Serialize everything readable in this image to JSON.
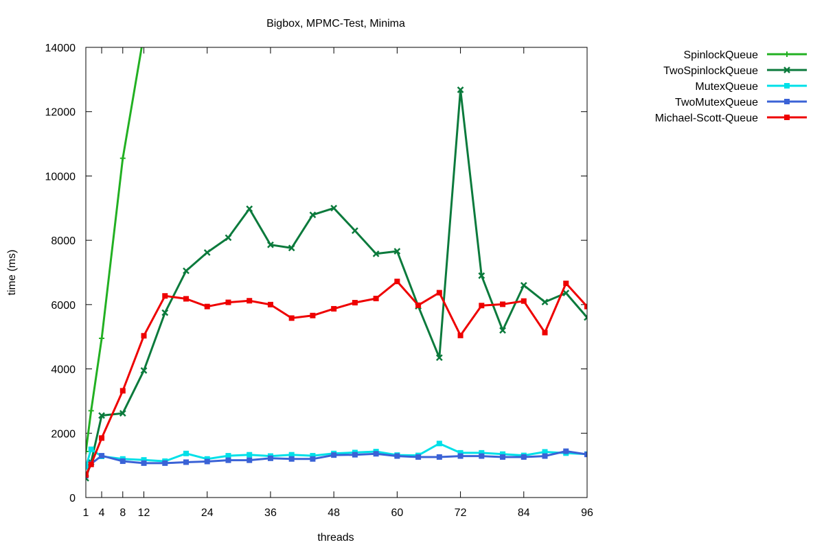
{
  "chart_data": {
    "type": "line",
    "title": "Bigbox, MPMC-Test, Minima",
    "xlabel": "threads",
    "ylabel": "time (ms)",
    "xlim": [
      1,
      96
    ],
    "ylim": [
      0,
      14000
    ],
    "xticks": [
      1,
      4,
      8,
      12,
      24,
      36,
      48,
      60,
      72,
      84,
      96
    ],
    "yticks": [
      0,
      2000,
      4000,
      6000,
      8000,
      10000,
      12000,
      14000
    ],
    "legend_position": "top-right outside",
    "grid": false,
    "series": [
      {
        "name": "SpinlockQueue",
        "color": "#22b022",
        "marker": "plus",
        "x": [
          1,
          2,
          4,
          8,
          12
        ],
        "y": [
          1430,
          2700,
          4950,
          10550,
          14400
        ]
      },
      {
        "name": "TwoSpinlockQueue",
        "color": "#0b7a3c",
        "marker": "cross",
        "x": [
          1,
          2,
          4,
          8,
          12,
          16,
          20,
          24,
          28,
          32,
          36,
          40,
          44,
          48,
          52,
          56,
          60,
          64,
          68,
          72,
          76,
          80,
          84,
          88,
          92,
          96
        ],
        "y": [
          600,
          1100,
          2550,
          2620,
          3950,
          5750,
          7050,
          7620,
          8080,
          8980,
          7860,
          7760,
          8790,
          9000,
          8300,
          7580,
          7660,
          5950,
          4350,
          12680,
          6900,
          5200,
          6600,
          6080,
          6360,
          5600
        ]
      },
      {
        "name": "MutexQueue",
        "color": "#00e0e8",
        "marker": "square",
        "x": [
          1,
          2,
          4,
          8,
          12,
          16,
          20,
          24,
          28,
          32,
          36,
          40,
          44,
          48,
          52,
          56,
          60,
          64,
          68,
          72,
          76,
          80,
          84,
          88,
          92,
          96
        ],
        "y": [
          950,
          1500,
          1280,
          1200,
          1170,
          1130,
          1370,
          1200,
          1300,
          1330,
          1290,
          1330,
          1300,
          1370,
          1400,
          1430,
          1320,
          1310,
          1680,
          1390,
          1390,
          1350,
          1310,
          1420,
          1380,
          1350
        ]
      },
      {
        "name": "TwoMutexQueue",
        "color": "#3a62d6",
        "marker": "square",
        "x": [
          1,
          2,
          4,
          8,
          12,
          16,
          20,
          24,
          28,
          32,
          36,
          40,
          44,
          48,
          52,
          56,
          60,
          64,
          68,
          72,
          76,
          80,
          84,
          88,
          92,
          96
        ],
        "y": [
          680,
          1050,
          1300,
          1130,
          1070,
          1070,
          1100,
          1120,
          1160,
          1160,
          1220,
          1200,
          1200,
          1320,
          1330,
          1360,
          1290,
          1260,
          1260,
          1290,
          1290,
          1260,
          1260,
          1290,
          1440,
          1340
        ]
      },
      {
        "name": "Michael-Scott-Queue",
        "color": "#ee0000",
        "marker": "square",
        "x": [
          1,
          2,
          4,
          8,
          12,
          16,
          20,
          24,
          28,
          32,
          36,
          40,
          44,
          48,
          52,
          56,
          60,
          64,
          68,
          72,
          76,
          80,
          84,
          88,
          92,
          96
        ],
        "y": [
          700,
          1030,
          1850,
          3320,
          5030,
          6270,
          6180,
          5940,
          6070,
          6120,
          6000,
          5580,
          5660,
          5870,
          6060,
          6190,
          6720,
          5980,
          6370,
          5040,
          5970,
          6010,
          6110,
          5130,
          6660,
          5940
        ]
      }
    ]
  }
}
